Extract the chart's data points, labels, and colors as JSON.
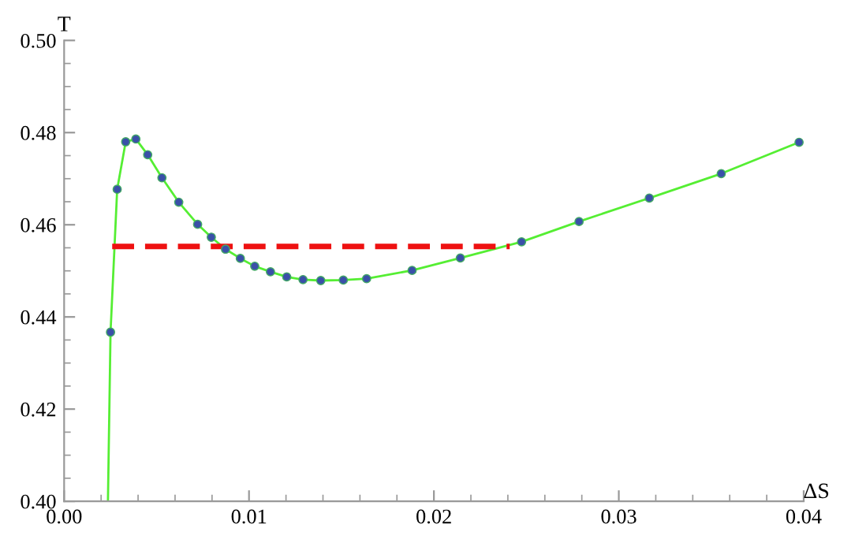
{
  "chart_data": {
    "type": "line",
    "xlabel": "ΔS",
    "ylabel": "T",
    "xlim": [
      0,
      0.04
    ],
    "ylim": [
      0.4,
      0.5
    ],
    "xticks": [
      {
        "value": 0,
        "label": "0.00"
      },
      0.01,
      0.02,
      0.03,
      0.04
    ],
    "yticks": [
      {
        "value": 0.4,
        "label": "0.40"
      },
      0.42,
      0.44,
      0.46,
      0.48,
      {
        "value": 0.5,
        "label": "0.50"
      }
    ],
    "grid": false,
    "series": [
      {
        "color": "#55ee33",
        "marker": "none",
        "line_style": "solid",
        "x": [
          0.00237,
          0.00251,
          0.00287,
          0.00333,
          0.00388,
          0.00452,
          0.00529,
          0.0062,
          0.00722,
          0.00796,
          0.00873,
          0.00953,
          0.01031,
          0.01116,
          0.01204,
          0.01292,
          0.01388,
          0.0151,
          0.01636,
          0.01882,
          0.02143,
          0.02474,
          0.02785,
          0.03165,
          0.03554,
          0.03975
        ],
        "values": [
          0.4,
          0.4367,
          0.4677,
          0.478,
          0.4786,
          0.4752,
          0.4702,
          0.4649,
          0.4601,
          0.4573,
          0.4547,
          0.4527,
          0.451,
          0.4498,
          0.4487,
          0.4481,
          0.4479,
          0.448,
          0.4483,
          0.4501,
          0.4528,
          0.4563,
          0.4607,
          0.4658,
          0.4711,
          0.4779
        ]
      },
      {
        "type": "scatter",
        "color": "#3a50a8",
        "marker": "circle",
        "x": [
          0.00251,
          0.00287,
          0.00333,
          0.00388,
          0.00452,
          0.00529,
          0.0062,
          0.00722,
          0.00796,
          0.00873,
          0.00953,
          0.01031,
          0.01116,
          0.01204,
          0.01292,
          0.01388,
          0.0151,
          0.01636,
          0.01882,
          0.02143,
          0.02474,
          0.02785,
          0.03165,
          0.03554,
          0.03975
        ],
        "values": [
          0.4367,
          0.4677,
          0.478,
          0.4786,
          0.4752,
          0.4702,
          0.4649,
          0.4601,
          0.4573,
          0.4547,
          0.4527,
          0.451,
          0.4498,
          0.4487,
          0.4481,
          0.4479,
          0.448,
          0.4483,
          0.4501,
          0.4528,
          0.4563,
          0.4607,
          0.4658,
          0.4711,
          0.4779
        ]
      },
      {
        "type": "line",
        "color": "#ee1111",
        "marker": "none",
        "line_style": "dashed",
        "x": [
          0.0026,
          0.0241
        ],
        "values": [
          0.4553,
          0.4553
        ]
      }
    ]
  }
}
